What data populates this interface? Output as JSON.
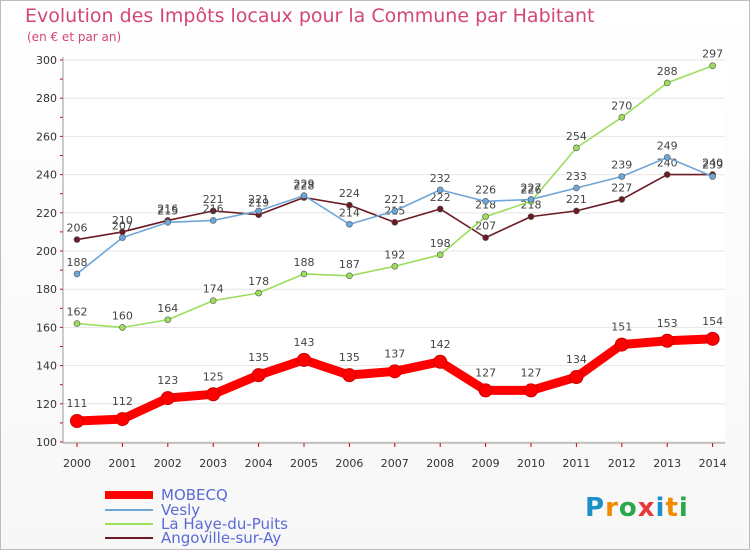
{
  "header": {
    "title": "Evolution des Impôts locaux pour la Commune par Habitant",
    "subtitle": "(en € et par an)"
  },
  "logo": {
    "text": "Proxiti",
    "letters": [
      "P",
      "r",
      "o",
      "x",
      "i",
      "t",
      "i"
    ],
    "colors": [
      "#1e90c8",
      "#f08c00",
      "#2aa84a",
      "#e83838",
      "#1e90c8",
      "#f08c00",
      "#2aa84a"
    ]
  },
  "chart_data": {
    "type": "line",
    "title": "Evolution des Impôts locaux pour la Commune par Habitant",
    "subtitle": "(en € et par an)",
    "xlabel": "",
    "ylabel": "",
    "ylim": [
      100,
      300
    ],
    "yticks": [
      100,
      120,
      140,
      160,
      180,
      200,
      220,
      240,
      260,
      280,
      300
    ],
    "x": [
      2000,
      2001,
      2002,
      2003,
      2004,
      2005,
      2006,
      2007,
      2008,
      2009,
      2010,
      2011,
      2012,
      2013,
      2014
    ],
    "grid": true,
    "legend": "bottom-left",
    "series": [
      {
        "name": "Angoville-sur-Ay",
        "color": "#6b1a24",
        "values": [
          206,
          210,
          216,
          221,
          219,
          228,
          224,
          215,
          222,
          207,
          218,
          221,
          227,
          240,
          240
        ]
      },
      {
        "name": "La Haye-du-Puits",
        "color": "#9bde5c",
        "values": [
          162,
          160,
          164,
          174,
          178,
          188,
          187,
          192,
          198,
          218,
          226,
          254,
          270,
          288,
          297
        ]
      },
      {
        "name": "Vesly",
        "color": "#6fa6d8",
        "values": [
          188,
          207,
          215,
          216,
          221,
          229,
          214,
          221,
          232,
          226,
          227,
          233,
          239,
          249,
          239
        ]
      },
      {
        "name": "MOBECQ",
        "color": "#ff0000",
        "values": [
          111,
          112,
          123,
          125,
          135,
          143,
          135,
          137,
          142,
          127,
          127,
          134,
          151,
          153,
          154
        ]
      }
    ],
    "legend_order": [
      "MOBECQ",
      "Vesly",
      "La Haye-du-Puits",
      "Angoville-sur-Ay"
    ]
  }
}
